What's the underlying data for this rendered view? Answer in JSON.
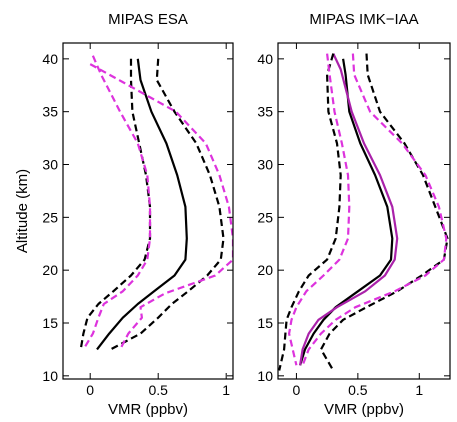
{
  "chart_data": [
    {
      "type": "line",
      "title": "MIPAS ESA",
      "xlabel": "VMR (ppbv)",
      "ylabel": "Altitude (km)",
      "xlim": [
        -0.2,
        1.05
      ],
      "ylim": [
        9.7,
        41.5
      ],
      "xticks": [
        0,
        0.5,
        1
      ],
      "xtick_labels": [
        "0",
        "0.5",
        "1"
      ],
      "yticks": [
        10,
        15,
        20,
        25,
        30,
        35,
        40
      ],
      "ytick_labels": [
        "10",
        "15",
        "20",
        "25",
        "30",
        "35",
        "40"
      ],
      "grid": false,
      "series": [
        {
          "color": "#000000",
          "dash": "solid",
          "x": [
            0.35,
            0.37,
            0.45,
            0.56,
            0.64,
            0.7,
            0.71,
            0.7,
            0.62,
            0.47,
            0.35,
            0.24,
            0.14,
            0.05
          ],
          "y": [
            40,
            38,
            35,
            32,
            29,
            26,
            23,
            21,
            19.5,
            18,
            16.8,
            15.5,
            14,
            12.5
          ]
        },
        {
          "color": "#000000",
          "dash": "dashed",
          "x": [
            0.5,
            0.49,
            0.62,
            0.78,
            0.88,
            0.95,
            0.98,
            0.96,
            0.86,
            0.72,
            0.6,
            0.5,
            0.37,
            0.15
          ],
          "y": [
            40,
            38,
            35,
            32,
            29,
            26,
            23,
            21,
            19.5,
            18,
            16.8,
            15.5,
            14,
            12.5
          ]
        },
        {
          "color": "#000000",
          "dash": "dashed",
          "x": [
            0.3,
            0.3,
            0.31,
            0.36,
            0.41,
            0.44,
            0.44,
            0.4,
            0.3,
            0.17,
            0.06,
            -0.02,
            -0.05,
            -0.07
          ],
          "y": [
            40,
            38,
            35,
            32,
            29,
            26,
            23,
            21,
            19.5,
            18,
            16.8,
            15.5,
            14,
            12.5
          ]
        },
        {
          "color": "#dd33dd",
          "dash": "dashed",
          "x": [
            0.0,
            0.24,
            0.63,
            0.85,
            0.95,
            1.02,
            1.05,
            1.05,
            0.92,
            0.55,
            0.37,
            0.38,
            0.28,
            0.22
          ],
          "y": [
            39.5,
            37.8,
            35,
            32,
            29,
            26,
            23,
            21,
            19.5,
            17.8,
            16.5,
            15.5,
            14,
            12.5
          ]
        },
        {
          "color": "#dd33dd",
          "dash": "dashed",
          "x": [
            0.02,
            0.08,
            0.22,
            0.35,
            0.42,
            0.44,
            0.44,
            0.42,
            0.35,
            0.24,
            0.1,
            0.06,
            0.02,
            -0.05
          ],
          "y": [
            40.3,
            38.5,
            35,
            32,
            29,
            26,
            23,
            21,
            19.5,
            18,
            16.8,
            15.5,
            14,
            12.5
          ]
        }
      ]
    },
    {
      "type": "line",
      "title": "MIPAS IMK−IAA",
      "xlabel": "VMR (ppbv)",
      "ylabel": "",
      "xlim": [
        -0.15,
        1.25
      ],
      "ylim": [
        9.7,
        41.5
      ],
      "xticks": [
        0,
        0.5,
        1
      ],
      "xtick_labels": [
        "0",
        "0.5",
        "1"
      ],
      "yticks": [
        10,
        15,
        20,
        25,
        30,
        35,
        40
      ],
      "ytick_labels": [
        "10",
        "15",
        "20",
        "25",
        "30",
        "35",
        "40"
      ],
      "grid": false,
      "series": [
        {
          "color": "#000000",
          "dash": "solid",
          "x": [
            0.38,
            0.4,
            0.43,
            0.52,
            0.64,
            0.74,
            0.78,
            0.77,
            0.68,
            0.5,
            0.32,
            0.22,
            0.14,
            0.07,
            0.03
          ],
          "y": [
            40,
            38.5,
            35,
            32,
            29,
            26,
            23,
            21,
            19.5,
            18,
            16.5,
            15.3,
            14,
            12.5,
            11
          ]
        },
        {
          "color": "#aa22aa",
          "dash": "solid",
          "x": [
            0.3,
            0.36,
            0.45,
            0.55,
            0.68,
            0.78,
            0.82,
            0.8,
            0.72,
            0.56,
            0.33,
            0.18,
            0.1,
            0.05,
            0.03
          ],
          "y": [
            40.5,
            39,
            35,
            32,
            29,
            26,
            23,
            21,
            19.5,
            18,
            16.5,
            15.3,
            14,
            12.5,
            11
          ]
        },
        {
          "color": "#000000",
          "dash": "dashed",
          "x": [
            0.57,
            0.58,
            0.68,
            0.88,
            1.03,
            1.13,
            1.23,
            1.2,
            1.02,
            0.82,
            0.57,
            0.38,
            0.27,
            0.2,
            0.3
          ],
          "y": [
            40.5,
            38.5,
            35,
            32,
            29,
            26,
            23,
            21,
            19.5,
            18,
            16.5,
            15.3,
            14,
            12.5,
            10.5
          ]
        },
        {
          "color": "#000000",
          "dash": "dashed",
          "x": [
            0.3,
            0.25,
            0.26,
            0.33,
            0.36,
            0.35,
            0.32,
            0.25,
            0.1,
            0.02,
            -0.04,
            -0.08,
            -0.09,
            -0.1,
            -0.14
          ],
          "y": [
            40.5,
            38.5,
            35,
            32,
            29,
            26,
            23,
            21,
            19.5,
            18,
            16.5,
            15.3,
            14,
            12.5,
            10.5
          ]
        },
        {
          "color": "#dd33dd",
          "dash": "dashed",
          "x": [
            0.46,
            0.47,
            0.6,
            0.86,
            1.05,
            1.16,
            1.22,
            1.2,
            1.05,
            0.8,
            0.48,
            0.32,
            0.2,
            0.1,
            0.05
          ],
          "y": [
            40.5,
            38.5,
            35,
            32,
            29,
            26,
            23,
            21,
            19.5,
            18,
            16.5,
            15.3,
            14,
            12.5,
            11
          ]
        },
        {
          "color": "#dd33dd",
          "dash": "dashed",
          "x": [
            0.25,
            0.27,
            0.31,
            0.37,
            0.42,
            0.43,
            0.42,
            0.35,
            0.22,
            0.08,
            0.0,
            -0.04,
            -0.06,
            -0.03,
            0.0
          ],
          "y": [
            40.5,
            38.5,
            35,
            32,
            29,
            26,
            23,
            21,
            19.5,
            18,
            16.5,
            15.3,
            14,
            12.5,
            11
          ]
        }
      ]
    }
  ]
}
